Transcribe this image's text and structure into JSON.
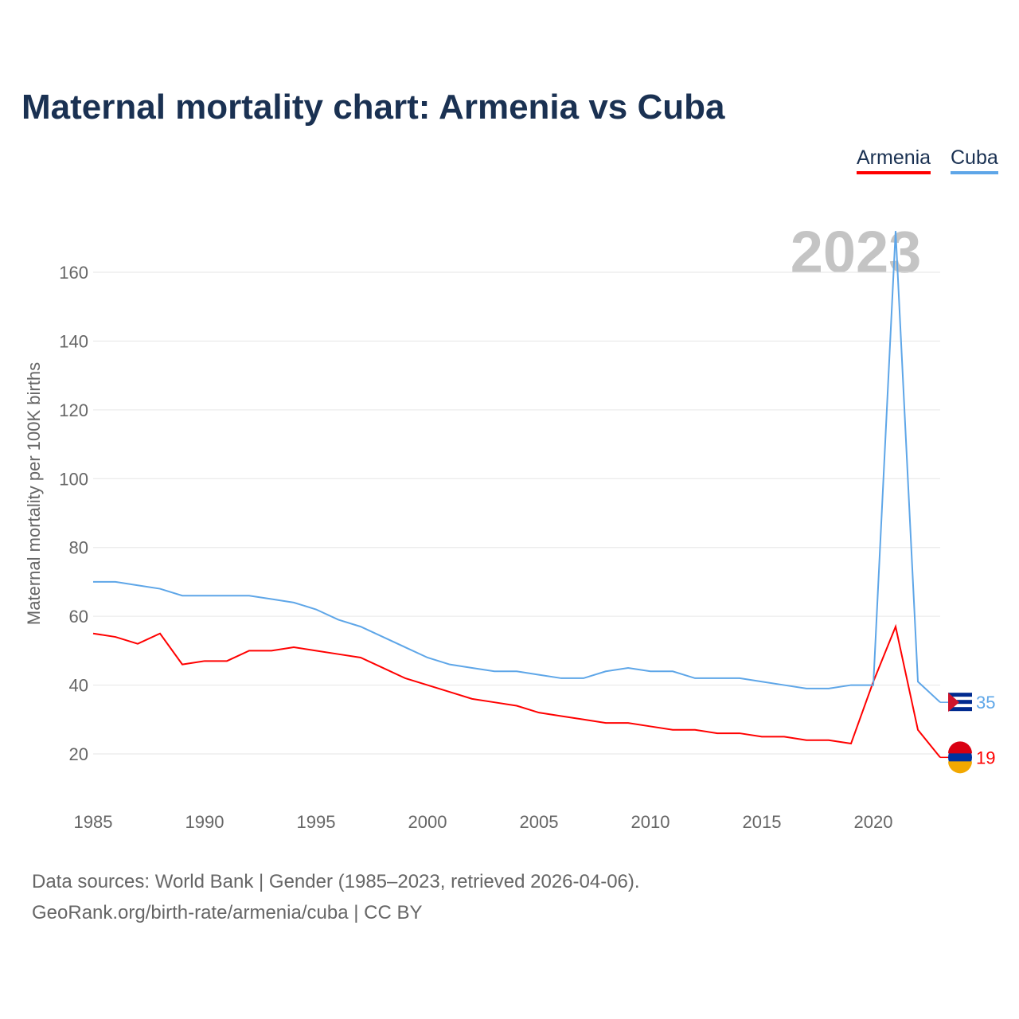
{
  "title": "Maternal mortality chart: Armenia vs Cuba",
  "legend": [
    "Armenia",
    "Cuba"
  ],
  "footer": {
    "line1": "Data sources: World Bank | Gender (1985–2023, retrieved 2026-04-06).",
    "line2": "GeoRank.org/birth-rate/armenia/cuba | CC BY"
  },
  "chart_data": {
    "type": "line",
    "title": "Maternal mortality chart: Armenia vs Cuba",
    "ylabel": "Maternal mortality per 100K births",
    "xlabel": "",
    "year_label": "2023",
    "xlim": [
      1985,
      2023
    ],
    "ylim": [
      10,
      175
    ],
    "xticks": [
      1985,
      1990,
      1995,
      2000,
      2005,
      2010,
      2015,
      2020
    ],
    "yticks": [
      20,
      40,
      60,
      80,
      100,
      120,
      140,
      160
    ],
    "x": [
      1985,
      1986,
      1987,
      1988,
      1989,
      1990,
      1991,
      1992,
      1993,
      1994,
      1995,
      1996,
      1997,
      1998,
      1999,
      2000,
      2001,
      2002,
      2003,
      2004,
      2005,
      2006,
      2007,
      2008,
      2009,
      2010,
      2011,
      2012,
      2013,
      2014,
      2015,
      2016,
      2017,
      2018,
      2019,
      2020,
      2021,
      2022,
      2023
    ],
    "series": [
      {
        "name": "Armenia",
        "color": "#ff0000",
        "end_label": "19",
        "values": [
          55,
          54,
          52,
          55,
          46,
          47,
          47,
          50,
          50,
          51,
          50,
          49,
          48,
          45,
          42,
          40,
          38,
          36,
          35,
          34,
          32,
          31,
          30,
          29,
          29,
          28,
          27,
          27,
          26,
          26,
          25,
          25,
          24,
          24,
          23,
          41,
          57,
          27,
          19
        ]
      },
      {
        "name": "Cuba",
        "color": "#5ea6e8",
        "end_label": "35",
        "values": [
          70,
          70,
          69,
          68,
          66,
          66,
          66,
          66,
          65,
          64,
          62,
          59,
          57,
          54,
          51,
          48,
          46,
          45,
          44,
          44,
          43,
          42,
          42,
          44,
          45,
          44,
          44,
          42,
          42,
          42,
          41,
          40,
          39,
          39,
          40,
          40,
          172,
          41,
          35
        ]
      }
    ]
  }
}
